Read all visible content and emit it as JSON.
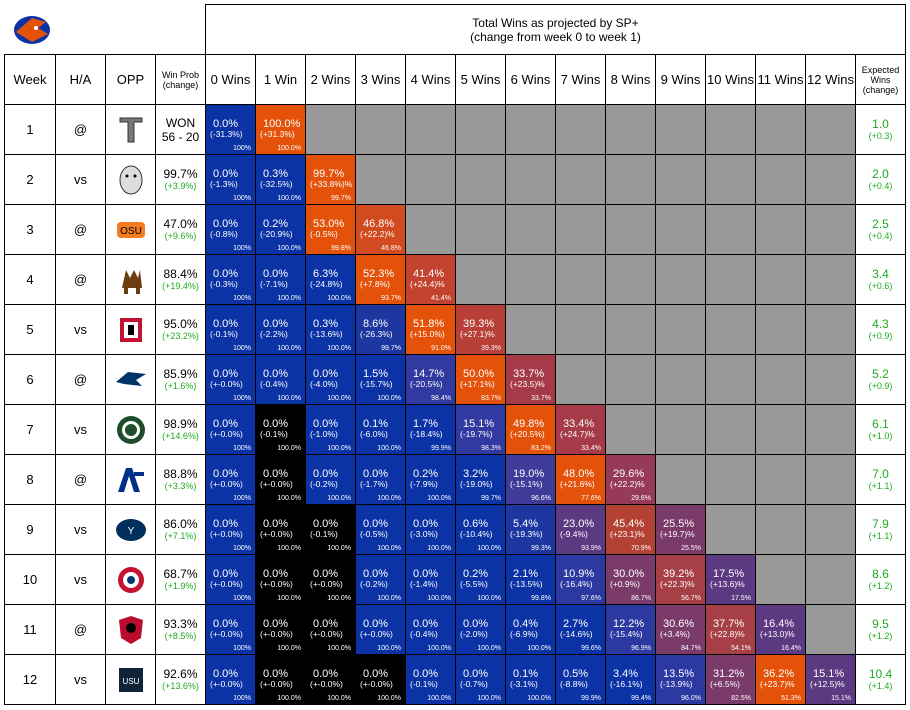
{
  "header": {
    "title_line1": "Total Wins as projected by SP+",
    "title_line2": "(change from week 0 to week 1)",
    "week": "Week",
    "ha": "H/A",
    "opp": "OPP",
    "winprob": "Win Prob (change)",
    "wins": [
      "0 Wins",
      "1 Win",
      "2 Wins",
      "3 Wins",
      "4 Wins",
      "5 Wins",
      "6 Wins",
      "7 Wins",
      "8 Wins",
      "9 Wins",
      "10 Wins",
      "11 Wins",
      "12 Wins"
    ],
    "expected": "Expected Wins (change)"
  },
  "colors": {
    "blue": "#0b33a5",
    "black": "#000000",
    "orange": "#e4520a",
    "gray": "#999999",
    "green_text": "#1faa1f"
  },
  "chart_data": {
    "type": "table",
    "title": "Total Wins as projected by SP+ (change from week 0 to week 1)",
    "rows": [
      {
        "week": "1",
        "ha": "@",
        "opp": "troy-logo",
        "result": "WON",
        "score": "56 - 20",
        "winprob": "",
        "winprob_change": "",
        "expected": "1.0",
        "expected_change": "(+0.3)",
        "cells": [
          {
            "p": "0.0%",
            "c": "(-31.3%)",
            "cum": "100%",
            "color": "#0b33a5"
          },
          {
            "p": "100.0%",
            "c": "(+31.3%)",
            "cum": "100.0%",
            "color": "#e4520a"
          }
        ]
      },
      {
        "week": "2",
        "ha": "vs",
        "opp": "uconn-logo",
        "result": "",
        "score": "",
        "winprob": "99.7%",
        "winprob_change": "(+3.9%)",
        "expected": "2.0",
        "expected_change": "(+0.4)",
        "cells": [
          {
            "p": "0.0%",
            "c": "(-1.3%)",
            "cum": "100%",
            "color": "#0b33a5"
          },
          {
            "p": "0.3%",
            "c": "(-32.5%)",
            "cum": "100.0%",
            "color": "#0b33a5"
          },
          {
            "p": "99.7%",
            "c": "(+33.8%)%",
            "cum": "99.7%",
            "color": "#e4520a"
          }
        ]
      },
      {
        "week": "3",
        "ha": "@",
        "opp": "osu-logo",
        "result": "",
        "score": "",
        "winprob": "47.0%",
        "winprob_change": "(+9.6%)",
        "expected": "2.5",
        "expected_change": "(+0.4)",
        "cells": [
          {
            "p": "0.0%",
            "c": "(-0.8%)",
            "cum": "100%",
            "color": "#0b33a5"
          },
          {
            "p": "0.2%",
            "c": "(-20.9%)",
            "cum": "100.0%",
            "color": "#0b33a5"
          },
          {
            "p": "53.0%",
            "c": "(-0.5%)",
            "cum": "99.8%",
            "color": "#e4520a"
          },
          {
            "p": "46.8%",
            "c": "(+22.2)%",
            "cum": "46.8%",
            "color": "#d24a1f"
          }
        ]
      },
      {
        "week": "4",
        "ha": "@",
        "opp": "wyoming-logo",
        "result": "",
        "score": "",
        "winprob": "88.4%",
        "winprob_change": "(+19.4%)",
        "expected": "3.4",
        "expected_change": "(+0.6)",
        "cells": [
          {
            "p": "0.0%",
            "c": "(-0.3%)",
            "cum": "100%",
            "color": "#0b33a5"
          },
          {
            "p": "0.0%",
            "c": "(-7.1%)",
            "cum": "100.0%",
            "color": "#0b33a5"
          },
          {
            "p": "6.3%",
            "c": "(-24.8%)",
            "cum": "100.0%",
            "color": "#0b33a5"
          },
          {
            "p": "52.3%",
            "c": "(+7.8%)",
            "cum": "93.7%",
            "color": "#e4520a"
          },
          {
            "p": "41.4%",
            "c": "(+24.4)%",
            "cum": "41.4%",
            "color": "#c4432e"
          }
        ]
      },
      {
        "week": "5",
        "ha": "vs",
        "opp": "sdsu-logo",
        "result": "",
        "score": "",
        "winprob": "95.0%",
        "winprob_change": "(+23.2%)",
        "expected": "4.3",
        "expected_change": "(+0.9)",
        "cells": [
          {
            "p": "0.0%",
            "c": "(-0.1%)",
            "cum": "100%",
            "color": "#0b33a5"
          },
          {
            "p": "0.0%",
            "c": "(-2.2%)",
            "cum": "100.0%",
            "color": "#0b33a5"
          },
          {
            "p": "0.3%",
            "c": "(-13.6%)",
            "cum": "100.0%",
            "color": "#0b33a5"
          },
          {
            "p": "8.6%",
            "c": "(-26.3%)",
            "cum": "99.7%",
            "color": "#1d36a0"
          },
          {
            "p": "51.8%",
            "c": "(+15.0%)",
            "cum": "91.0%",
            "color": "#e4520a"
          },
          {
            "p": "39.3%",
            "c": "(+27.1)%",
            "cum": "39.3%",
            "color": "#b84038"
          }
        ]
      },
      {
        "week": "6",
        "ha": "@",
        "opp": "nevada-logo",
        "result": "",
        "score": "",
        "winprob": "85.9%",
        "winprob_change": "(+1.6%)",
        "expected": "5.2",
        "expected_change": "(+0.9)",
        "cells": [
          {
            "p": "0.0%",
            "c": "(+-0.0%)",
            "cum": "100%",
            "color": "#0b33a5"
          },
          {
            "p": "0.0%",
            "c": "(-0.4%)",
            "cum": "100.0%",
            "color": "#0b33a5"
          },
          {
            "p": "0.0%",
            "c": "(-4.0%)",
            "cum": "100.0%",
            "color": "#0b33a5"
          },
          {
            "p": "1.5%",
            "c": "(-15.7%)",
            "cum": "100.0%",
            "color": "#0b33a5"
          },
          {
            "p": "14.7%",
            "c": "(-20.5%)",
            "cum": "98.4%",
            "color": "#303aa0"
          },
          {
            "p": "50.0%",
            "c": "(+17.1%)",
            "cum": "83.7%",
            "color": "#e4520a"
          },
          {
            "p": "33.7%",
            "c": "(+23.5)%",
            "cum": "33.7%",
            "color": "#a53b48"
          }
        ]
      },
      {
        "week": "7",
        "ha": "vs",
        "opp": "csu-logo",
        "result": "",
        "score": "",
        "winprob": "98.9%",
        "winprob_change": "(+14.6%)",
        "expected": "6.1",
        "expected_change": "(+1.0)",
        "cells": [
          {
            "p": "0.0%",
            "c": "(+-0.0%)",
            "cum": "100%",
            "color": "#0b33a5"
          },
          {
            "p": "0.0%",
            "c": "(-0.1%)",
            "cum": "100.0%",
            "color": "#000000"
          },
          {
            "p": "0.0%",
            "c": "(-1.0%)",
            "cum": "100.0%",
            "color": "#0b33a5"
          },
          {
            "p": "0.1%",
            "c": "(-6.0%)",
            "cum": "100.0%",
            "color": "#0b33a5"
          },
          {
            "p": "1.7%",
            "c": "(-18.4%)",
            "cum": "99.9%",
            "color": "#0b33a5"
          },
          {
            "p": "15.1%",
            "c": "(-19.7%)",
            "cum": "98.3%",
            "color": "#303aa0"
          },
          {
            "p": "49.8%",
            "c": "(+20.5%)",
            "cum": "83.2%",
            "color": "#e4520a"
          },
          {
            "p": "33.4%",
            "c": "(+24.7)%",
            "cum": "33.4%",
            "color": "#a53b48"
          }
        ]
      },
      {
        "week": "8",
        "ha": "@",
        "opp": "af-logo",
        "result": "",
        "score": "",
        "winprob": "88.8%",
        "winprob_change": "(+3.3%)",
        "expected": "7.0",
        "expected_change": "(+1.1)",
        "cells": [
          {
            "p": "0.0%",
            "c": "(+-0.0%)",
            "cum": "100%",
            "color": "#0b33a5"
          },
          {
            "p": "0.0%",
            "c": "(+-0.0%)",
            "cum": "100.0%",
            "color": "#000000"
          },
          {
            "p": "0.0%",
            "c": "(-0.2%)",
            "cum": "100.0%",
            "color": "#0b33a5"
          },
          {
            "p": "0.0%",
            "c": "(-1.7%)",
            "cum": "100.0%",
            "color": "#0b33a5"
          },
          {
            "p": "0.2%",
            "c": "(-7.9%)",
            "cum": "100.0%",
            "color": "#0b33a5"
          },
          {
            "p": "3.2%",
            "c": "(-19.0%)",
            "cum": "99.7%",
            "color": "#0b33a5"
          },
          {
            "p": "19.0%",
            "c": "(-15.1%)",
            "cum": "96.6%",
            "color": "#3f3b98"
          },
          {
            "p": "48.0%",
            "c": "(+21.6%)",
            "cum": "77.6%",
            "color": "#e4520a"
          },
          {
            "p": "29.6%",
            "c": "(+22.2)%",
            "cum": "29.6%",
            "color": "#963a58"
          }
        ]
      },
      {
        "week": "9",
        "ha": "vs",
        "opp": "byu-logo",
        "result": "",
        "score": "",
        "winprob": "86.0%",
        "winprob_change": "(+7.1%)",
        "expected": "7.9",
        "expected_change": "(+1.1)",
        "cells": [
          {
            "p": "0.0%",
            "c": "(+-0.0%)",
            "cum": "100%",
            "color": "#0b33a5"
          },
          {
            "p": "0.0%",
            "c": "(+-0.0%)",
            "cum": "100.0%",
            "color": "#000000"
          },
          {
            "p": "0.0%",
            "c": "(-0.1%)",
            "cum": "100.0%",
            "color": "#000000"
          },
          {
            "p": "0.0%",
            "c": "(-0.5%)",
            "cum": "100.0%",
            "color": "#0b33a5"
          },
          {
            "p": "0.0%",
            "c": "(-3.0%)",
            "cum": "100.0%",
            "color": "#0b33a5"
          },
          {
            "p": "0.6%",
            "c": "(-10.4%)",
            "cum": "100.0%",
            "color": "#0b33a5"
          },
          {
            "p": "5.4%",
            "c": "(-19.3%)",
            "cum": "99.3%",
            "color": "#1d36a0"
          },
          {
            "p": "23.0%",
            "c": "(-9.4%)",
            "cum": "93.9%",
            "color": "#5c3a82"
          },
          {
            "p": "45.4%",
            "c": "(+23.1)%",
            "cum": "70.9%",
            "color": "#b44234"
          },
          {
            "p": "25.5%",
            "c": "(+19.7)%",
            "cum": "25.5%",
            "color": "#7a3a6a"
          }
        ]
      },
      {
        "week": "10",
        "ha": "vs",
        "opp": "fresno-logo",
        "result": "",
        "score": "",
        "winprob": "68.7%",
        "winprob_change": "(+1.9%)",
        "expected": "8.6",
        "expected_change": "(+1.2)",
        "cells": [
          {
            "p": "0.0%",
            "c": "(+-0.0%)",
            "cum": "100%",
            "color": "#0b33a5"
          },
          {
            "p": "0.0%",
            "c": "(+-0.0%)",
            "cum": "100.0%",
            "color": "#000000"
          },
          {
            "p": "0.0%",
            "c": "(+-0.0%)",
            "cum": "100.0%",
            "color": "#000000"
          },
          {
            "p": "0.0%",
            "c": "(-0.2%)",
            "cum": "100.0%",
            "color": "#0b33a5"
          },
          {
            "p": "0.0%",
            "c": "(-1.4%)",
            "cum": "100.0%",
            "color": "#0b33a5"
          },
          {
            "p": "0.2%",
            "c": "(-5.5%)",
            "cum": "100.0%",
            "color": "#0b33a5"
          },
          {
            "p": "2.1%",
            "c": "(-13.5%)",
            "cum": "99.8%",
            "color": "#0b33a5"
          },
          {
            "p": "10.9%",
            "c": "(-16.4%)",
            "cum": "97.6%",
            "color": "#2c39a0"
          },
          {
            "p": "30.0%",
            "c": "(+0.9%)",
            "cum": "86.7%",
            "color": "#7a3a6a"
          },
          {
            "p": "39.2%",
            "c": "(+22.3)%",
            "cum": "56.7%",
            "color": "#a63f46"
          },
          {
            "p": "17.5%",
            "c": "(+13.6)%",
            "cum": "17.5%",
            "color": "#5c3a82"
          }
        ]
      },
      {
        "week": "11",
        "ha": "@",
        "opp": "unm-logo",
        "result": "",
        "score": "",
        "winprob": "93.3%",
        "winprob_change": "(+8.5%)",
        "expected": "9.5",
        "expected_change": "(+1.2)",
        "cells": [
          {
            "p": "0.0%",
            "c": "(+-0.0%)",
            "cum": "100%",
            "color": "#0b33a5"
          },
          {
            "p": "0.0%",
            "c": "(+-0.0%)",
            "cum": "100.0%",
            "color": "#000000"
          },
          {
            "p": "0.0%",
            "c": "(+-0.0%)",
            "cum": "100.0%",
            "color": "#000000"
          },
          {
            "p": "0.0%",
            "c": "(+-0.0%)",
            "cum": "100.0%",
            "color": "#0b33a5"
          },
          {
            "p": "0.0%",
            "c": "(-0.4%)",
            "cum": "100.0%",
            "color": "#0b33a5"
          },
          {
            "p": "0.0%",
            "c": "(-2.0%)",
            "cum": "100.0%",
            "color": "#0b33a5"
          },
          {
            "p": "0.4%",
            "c": "(-6.9%)",
            "cum": "100.0%",
            "color": "#0b33a5"
          },
          {
            "p": "2.7%",
            "c": "(-14.6%)",
            "cum": "99.6%",
            "color": "#0b33a5"
          },
          {
            "p": "12.2%",
            "c": "(-15.4%)",
            "cum": "96.9%",
            "color": "#2c39a0"
          },
          {
            "p": "30.6%",
            "c": "(+3.4%)",
            "cum": "84.7%",
            "color": "#7a3a6a"
          },
          {
            "p": "37.7%",
            "c": "(+22.8)%",
            "cum": "54.1%",
            "color": "#a63f46"
          },
          {
            "p": "16.4%",
            "c": "(+13.0)%",
            "cum": "16.4%",
            "color": "#5c3a82"
          }
        ]
      },
      {
        "week": "12",
        "ha": "vs",
        "opp": "usu-logo",
        "result": "",
        "score": "",
        "winprob": "92.6%",
        "winprob_change": "(+13.6%)",
        "expected": "10.4",
        "expected_change": "(+1.4)",
        "cells": [
          {
            "p": "0.0%",
            "c": "(+-0.0%)",
            "cum": "100%",
            "color": "#0b33a5"
          },
          {
            "p": "0.0%",
            "c": "(+-0.0%)",
            "cum": "100.0%",
            "color": "#000000"
          },
          {
            "p": "0.0%",
            "c": "(+-0.0%)",
            "cum": "100.0%",
            "color": "#000000"
          },
          {
            "p": "0.0%",
            "c": "(+-0.0%)",
            "cum": "100.0%",
            "color": "#000000"
          },
          {
            "p": "0.0%",
            "c": "(-0.1%)",
            "cum": "100.0%",
            "color": "#0b33a5"
          },
          {
            "p": "0.0%",
            "c": "(-0.7%)",
            "cum": "100.0%",
            "color": "#0b33a5"
          },
          {
            "p": "0.1%",
            "c": "(-3.1%)",
            "cum": "100.0%",
            "color": "#0b33a5"
          },
          {
            "p": "0.5%",
            "c": "(-8.8%)",
            "cum": "99.9%",
            "color": "#0b33a5"
          },
          {
            "p": "3.4%",
            "c": "(-16.1%)",
            "cum": "99.4%",
            "color": "#0b33a5"
          },
          {
            "p": "13.5%",
            "c": "(-13.9%)",
            "cum": "96.0%",
            "color": "#2c39a0"
          },
          {
            "p": "31.2%",
            "c": "(+6.5%)",
            "cum": "82.5%",
            "color": "#7a3a6a"
          },
          {
            "p": "36.2%",
            "c": "(+23.7)%",
            "cum": "51.3%",
            "color": "#e4520a"
          },
          {
            "p": "15.1%",
            "c": "(+12.5)%",
            "cum": "15.1%",
            "color": "#5c3a82"
          }
        ]
      }
    ]
  }
}
